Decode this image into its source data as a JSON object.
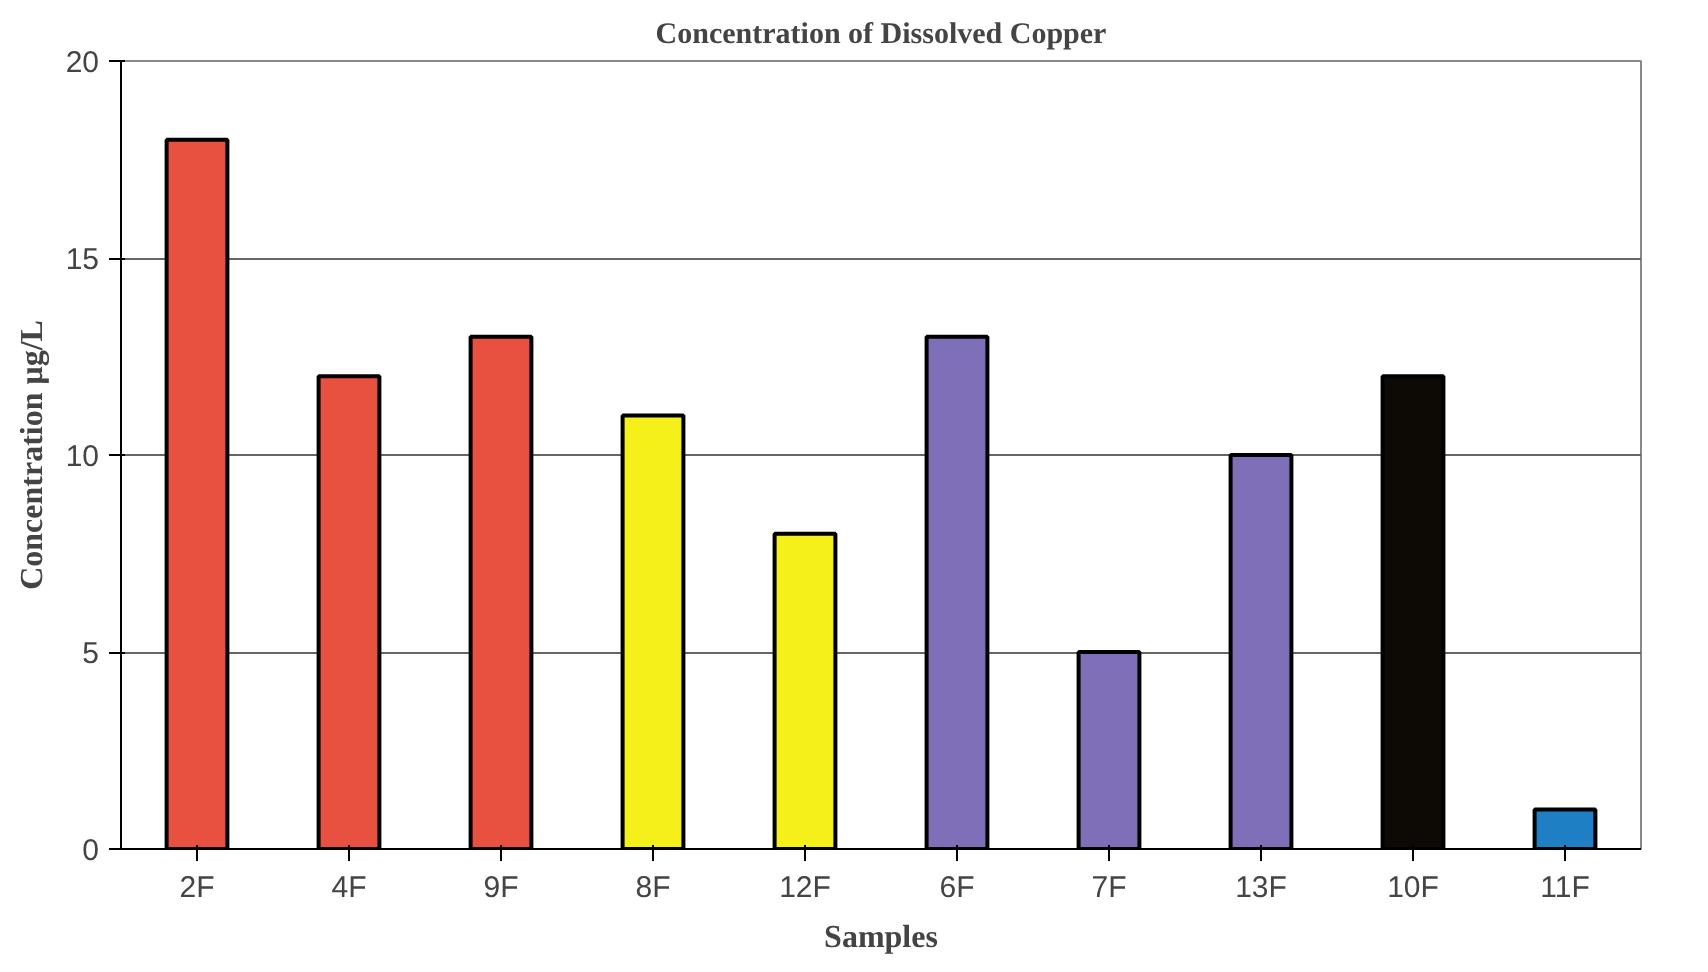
{
  "chart_data": {
    "type": "bar",
    "title": "Concentration of Dissolved Copper",
    "xlabel": "Samples",
    "ylabel": "Concentration μg/L",
    "categories": [
      "2F",
      "4F",
      "9F",
      "8F",
      "12F",
      "6F",
      "7F",
      "13F",
      "10F",
      "11F"
    ],
    "values": [
      18,
      12,
      13,
      11,
      8,
      13,
      5,
      10,
      12,
      1
    ],
    "colors": [
      "#e8503f",
      "#e8503f",
      "#e8503f",
      "#f5f01a",
      "#f5f01a",
      "#7f6fb8",
      "#7f6fb8",
      "#7f6fb8",
      "#0d0a05",
      "#1f7fc4"
    ],
    "ylim": [
      0,
      20
    ],
    "yticks": [
      0,
      5,
      10,
      15,
      20
    ],
    "grid": "y"
  }
}
